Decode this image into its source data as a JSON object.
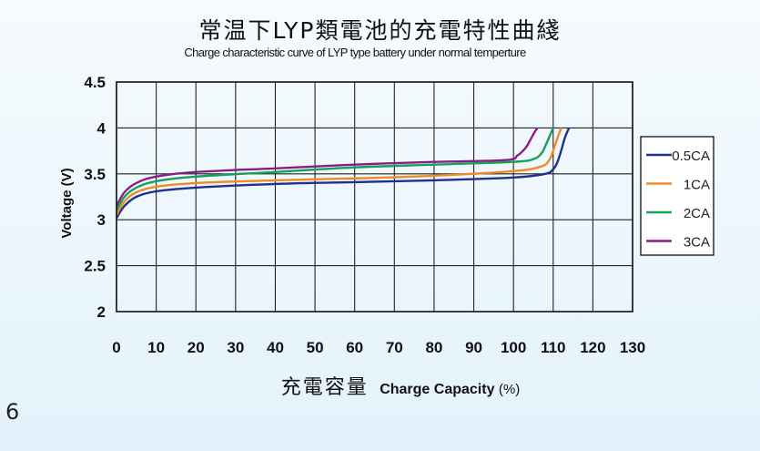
{
  "page_number": "6",
  "chart_data": {
    "type": "line",
    "title": "常温下LYP類電池的充電特性曲綫",
    "subtitle": "Charge characteristic curve of LYP type battery under normal temperture",
    "xlabel_zh": "充電容量",
    "xlabel_en": "Charge Capacity",
    "xlabel_unit": "(%)",
    "ylabel": "Voltage (V)",
    "xlim": [
      0,
      130
    ],
    "ylim": [
      2,
      4.5
    ],
    "x_ticks": [
      0,
      10,
      20,
      30,
      40,
      50,
      60,
      70,
      80,
      90,
      100,
      110,
      120,
      130
    ],
    "y_ticks": [
      2,
      2.5,
      3,
      3.5,
      4,
      4.5
    ],
    "y_tick_labels": [
      "2",
      "2.5",
      "3",
      "3.5",
      "4",
      "4.5"
    ],
    "grid": true,
    "legend_position": "right",
    "series": [
      {
        "name": "0.5CA",
        "color": "#1f2f8f",
        "x": [
          0,
          2,
          5,
          10,
          20,
          40,
          60,
          80,
          100,
          108,
          110,
          111,
          112,
          113,
          114
        ],
        "y": [
          3.02,
          3.15,
          3.25,
          3.31,
          3.35,
          3.39,
          3.41,
          3.43,
          3.46,
          3.5,
          3.55,
          3.62,
          3.75,
          3.9,
          4.0
        ]
      },
      {
        "name": "1CA",
        "color": "#f08a24",
        "x": [
          0,
          2,
          5,
          10,
          20,
          40,
          60,
          80,
          100,
          107,
          109,
          110,
          111,
          112
        ],
        "y": [
          3.05,
          3.2,
          3.3,
          3.36,
          3.4,
          3.43,
          3.45,
          3.48,
          3.53,
          3.58,
          3.65,
          3.75,
          3.88,
          4.0
        ]
      },
      {
        "name": "2CA",
        "color": "#16a05a",
        "x": [
          0,
          2,
          5,
          10,
          20,
          40,
          60,
          80,
          100,
          105,
          107,
          108,
          109,
          110
        ],
        "y": [
          3.1,
          3.25,
          3.35,
          3.42,
          3.47,
          3.52,
          3.57,
          3.6,
          3.63,
          3.66,
          3.72,
          3.8,
          3.9,
          4.0
        ]
      },
      {
        "name": "3CA",
        "color": "#8a1c8a",
        "x": [
          0,
          2,
          5,
          10,
          20,
          40,
          60,
          80,
          98,
          101,
          103,
          104,
          105,
          106
        ],
        "y": [
          3.15,
          3.3,
          3.4,
          3.47,
          3.52,
          3.56,
          3.6,
          3.63,
          3.65,
          3.7,
          3.78,
          3.85,
          3.93,
          4.0
        ]
      }
    ]
  }
}
